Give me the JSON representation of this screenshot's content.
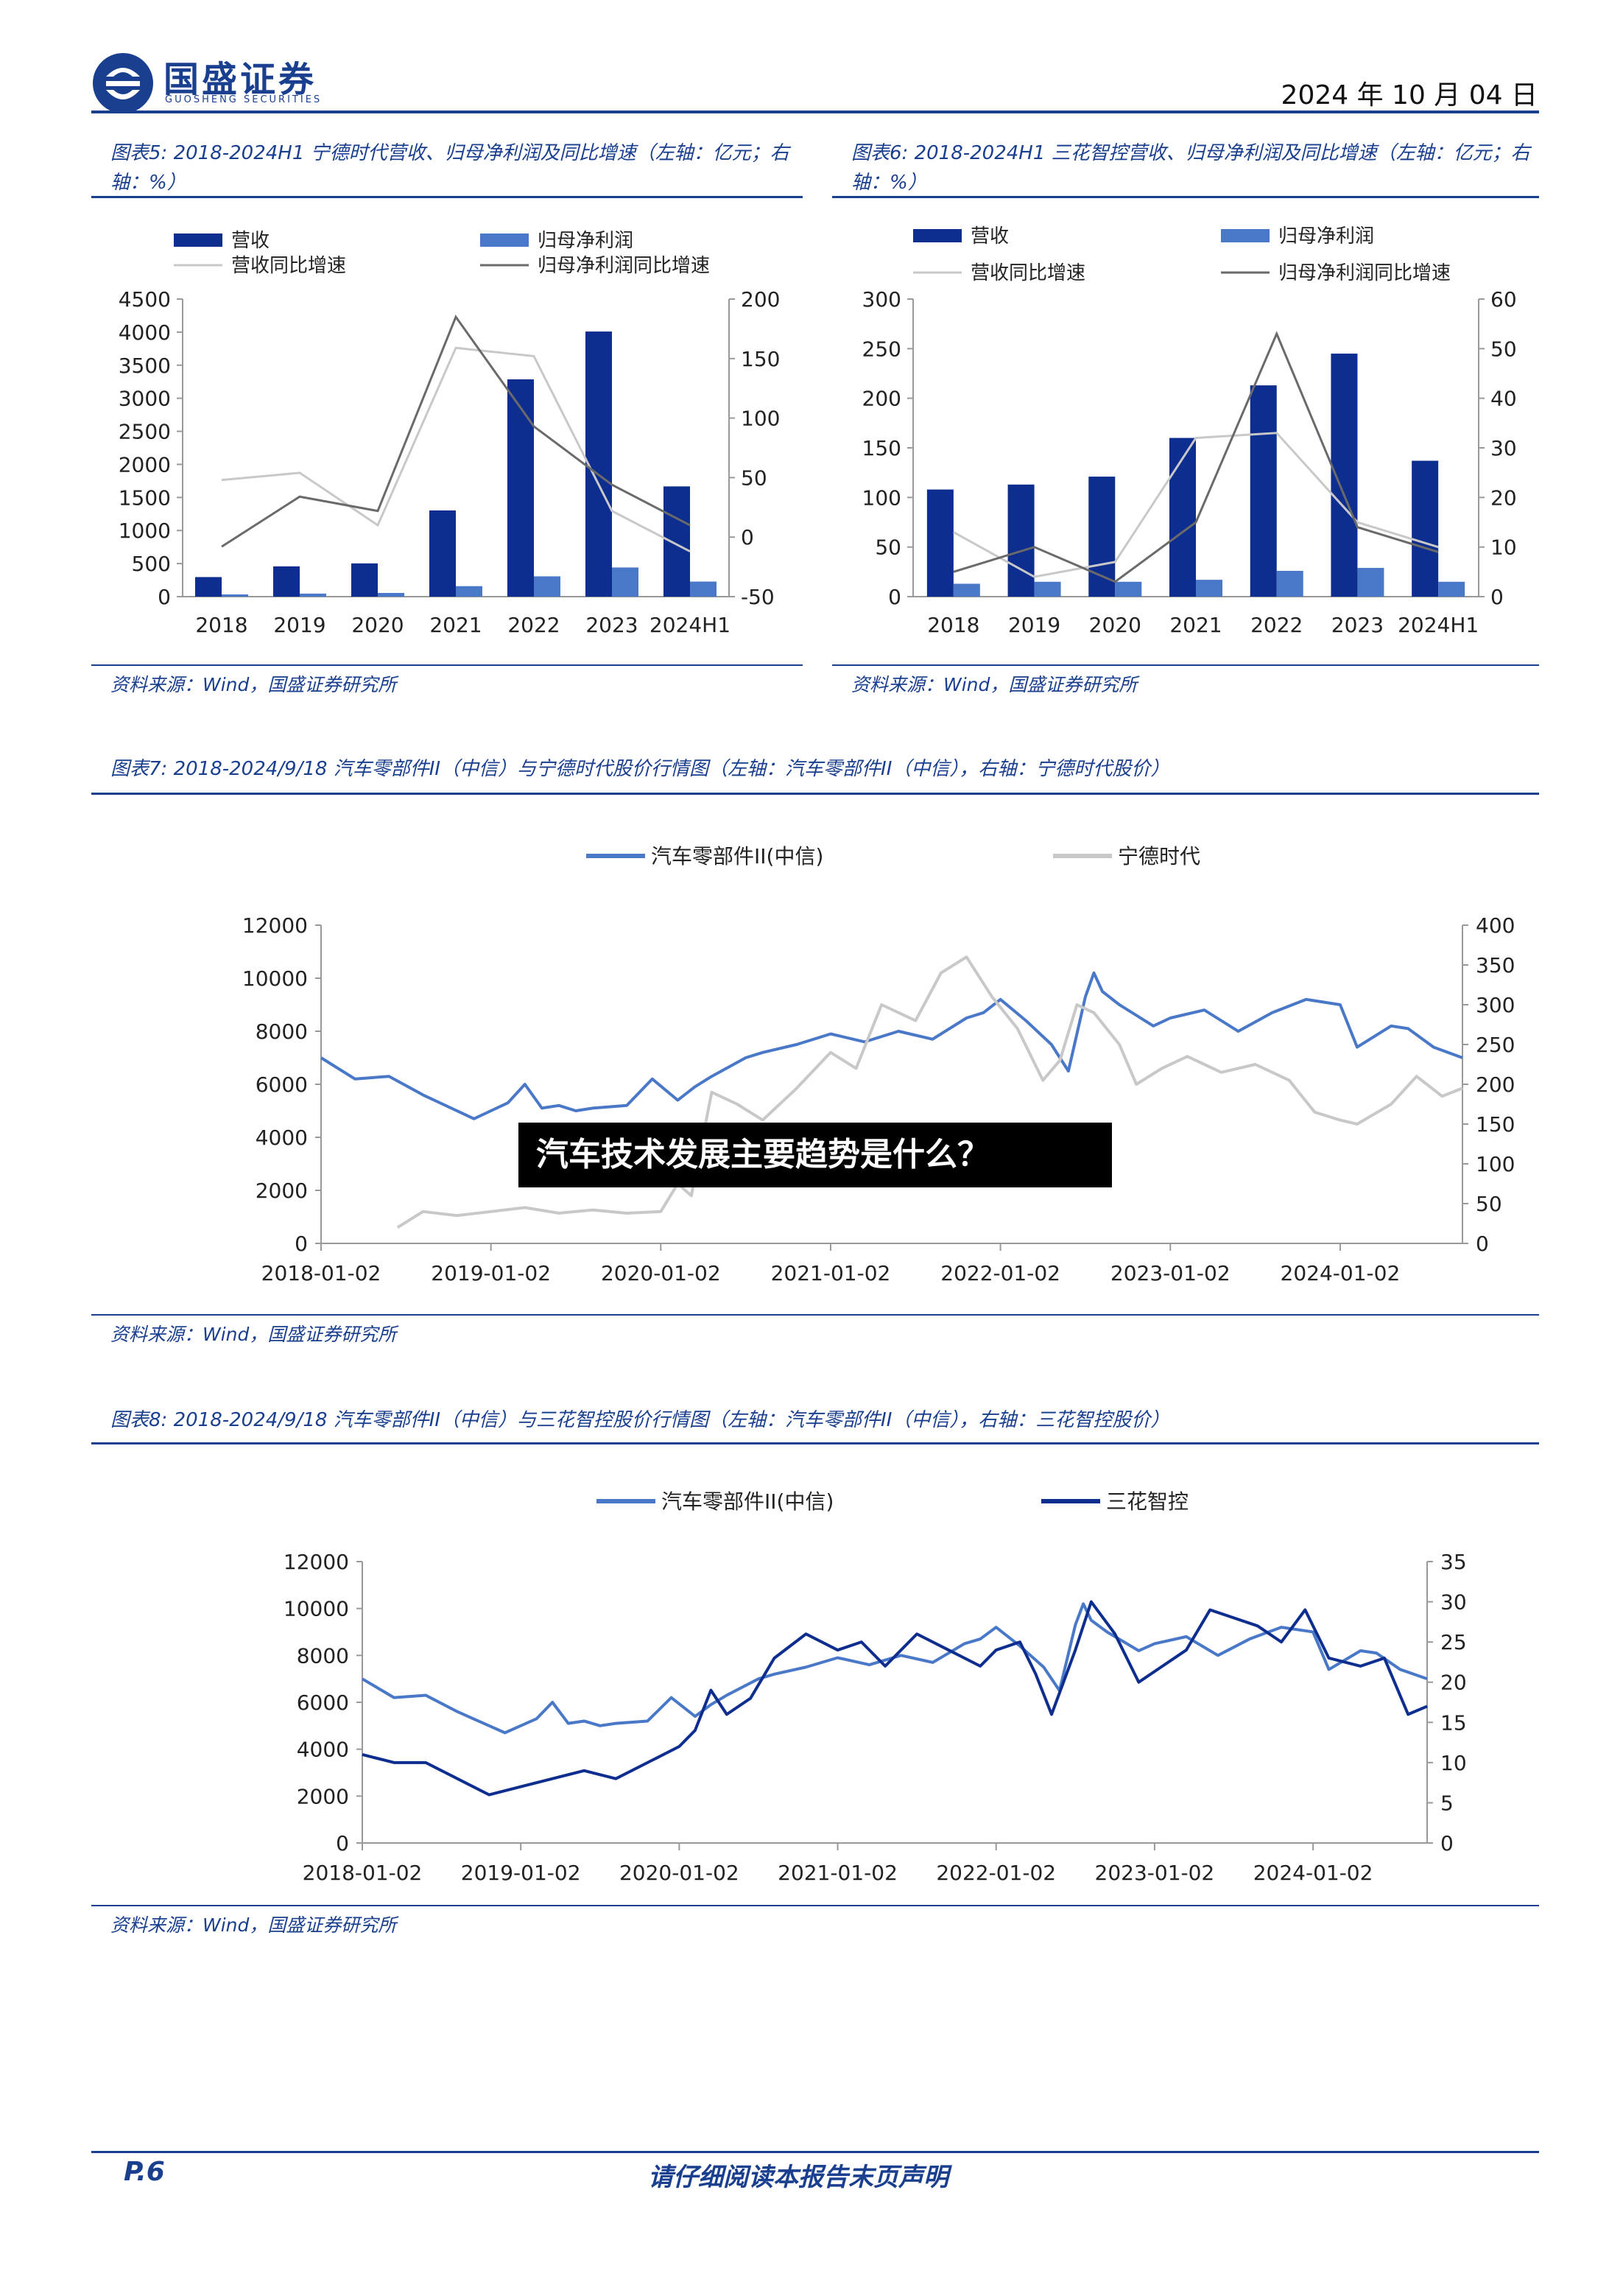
{
  "header": {
    "brand_cn": "国盛证券",
    "brand_en": "GUOSHENG SECURITIES",
    "date": "2024 年 10 月 04 日"
  },
  "colors": {
    "navy": "#0d2d8f",
    "mid_blue": "#4a78c8",
    "light_gray": "#c8c8c8",
    "dark_gray": "#6a6a6a",
    "brand": "#1a3f8f"
  },
  "fig5": {
    "title": "图表5:  2018-2024H1  宁德时代营收、归母净利润及同比增速（左轴：亿元；右轴：%）",
    "source": "资料来源：Wind，国盛证券研究所"
  },
  "fig6": {
    "title": "图表6:  2018-2024H1  三花智控营收、归母净利润及同比增速（左轴：亿元；右轴：%）",
    "source": "资料来源：Wind，国盛证券研究所"
  },
  "fig7": {
    "title": "图表7:  2018-2024/9/18 汽车零部件II（中信）与宁德时代股价行情图（左轴：汽车零部件II（中信），右轴：宁德时代股价）",
    "source": "资料来源：Wind，国盛证券研究所"
  },
  "fig8": {
    "title": "图表8:  2018-2024/9/18 汽车零部件II（中信）与三花智控股价行情图（左轴：汽车零部件II（中信），右轴：三花智控股价）",
    "source": "资料来源：Wind，国盛证券研究所"
  },
  "overlay": {
    "question": "汽车技术发展主要趋势是什么？"
  },
  "footer": {
    "page": "P.6",
    "note": "请仔细阅读本报告末页声明"
  },
  "chart_data": [
    {
      "id": "fig5",
      "type": "bar",
      "categories": [
        "2018",
        "2019",
        "2020",
        "2021",
        "2022",
        "2023",
        "2024H1"
      ],
      "series": [
        {
          "name": "营收",
          "kind": "bar",
          "axis": "left",
          "color": "#0d2d8f",
          "values": [
            296,
            458,
            503,
            1304,
            3286,
            4009,
            1667
          ]
        },
        {
          "name": "归母净利润",
          "kind": "bar",
          "axis": "left",
          "color": "#4a78c8",
          "values": [
            34,
            46,
            56,
            159,
            307,
            441,
            228
          ]
        },
        {
          "name": "营收同比增速",
          "kind": "line",
          "axis": "right",
          "color": "#c8c8c8",
          "values": [
            48,
            54,
            10,
            159,
            152,
            22,
            -12
          ]
        },
        {
          "name": "归母净利润同比增速",
          "kind": "line",
          "axis": "right",
          "color": "#6a6a6a",
          "values": [
            -8,
            34,
            22,
            185,
            93,
            44,
            10
          ]
        }
      ],
      "ylim": [
        0,
        4500
      ],
      "yticks": [
        0,
        500,
        1000,
        1500,
        2000,
        2500,
        3000,
        3500,
        4000,
        4500
      ],
      "y2lim": [
        -50,
        200
      ],
      "y2ticks": [
        -50,
        0,
        50,
        100,
        150,
        200
      ],
      "legend_position": "top"
    },
    {
      "id": "fig6",
      "type": "bar",
      "categories": [
        "2018",
        "2019",
        "2020",
        "2021",
        "2022",
        "2023",
        "2024H1"
      ],
      "series": [
        {
          "name": "营收",
          "kind": "bar",
          "axis": "left",
          "color": "#0d2d8f",
          "values": [
            108,
            113,
            121,
            160,
            213,
            245,
            137
          ]
        },
        {
          "name": "归母净利润",
          "kind": "bar",
          "axis": "left",
          "color": "#4a78c8",
          "values": [
            13,
            15,
            15,
            17,
            26,
            29,
            15
          ]
        },
        {
          "name": "营收同比增速",
          "kind": "line",
          "axis": "right",
          "color": "#c8c8c8",
          "values": [
            13,
            4,
            7,
            32,
            33,
            15,
            10
          ]
        },
        {
          "name": "归母净利润同比增速",
          "kind": "line",
          "axis": "right",
          "color": "#6a6a6a",
          "values": [
            5,
            10,
            3,
            15,
            53,
            14,
            9
          ]
        }
      ],
      "ylim": [
        0,
        300
      ],
      "yticks": [
        0,
        50,
        100,
        150,
        200,
        250,
        300
      ],
      "y2lim": [
        0,
        60
      ],
      "y2ticks": [
        0,
        10,
        20,
        30,
        40,
        50,
        60
      ],
      "legend_position": "top"
    },
    {
      "id": "fig7",
      "type": "line",
      "x_labels": [
        "2018-01-02",
        "2019-01-02",
        "2020-01-02",
        "2021-01-02",
        "2022-01-02",
        "2023-01-02",
        "2024-01-02"
      ],
      "x_range": [
        2018.0,
        2024.72
      ],
      "series": [
        {
          "name": "汽车零部件II(中信)",
          "axis": "left",
          "color": "#4a78c8",
          "x": [
            2018.0,
            2018.2,
            2018.4,
            2018.6,
            2018.8,
            2018.9,
            2019.0,
            2019.1,
            2019.2,
            2019.3,
            2019.4,
            2019.5,
            2019.6,
            2019.8,
            2019.95,
            2020.1,
            2020.2,
            2020.3,
            2020.5,
            2020.6,
            2020.8,
            2021.0,
            2021.2,
            2021.4,
            2021.6,
            2021.8,
            2021.9,
            2022.0,
            2022.15,
            2022.3,
            2022.4,
            2022.5,
            2022.55,
            2022.6,
            2022.7,
            2022.9,
            2023.0,
            2023.2,
            2023.4,
            2023.6,
            2023.8,
            2024.0,
            2024.1,
            2024.3,
            2024.4,
            2024.55,
            2024.72
          ],
          "values": [
            7000,
            6200,
            6300,
            5600,
            5000,
            4700,
            5000,
            5300,
            6000,
            5100,
            5200,
            5000,
            5100,
            5200,
            6200,
            5400,
            5900,
            6300,
            7000,
            7200,
            7500,
            7900,
            7600,
            8000,
            7700,
            8500,
            8700,
            9200,
            8400,
            7500,
            6500,
            9300,
            10200,
            9500,
            9000,
            8200,
            8500,
            8800,
            8000,
            8700,
            9200,
            9000,
            7400,
            8200,
            8100,
            7400,
            7000
          ]
        },
        {
          "name": "宁德时代",
          "axis": "right",
          "color": "#c8c8c8",
          "x": [
            2018.45,
            2018.6,
            2018.8,
            2019.0,
            2019.2,
            2019.4,
            2019.6,
            2019.8,
            2020.0,
            2020.1,
            2020.18,
            2020.3,
            2020.45,
            2020.6,
            2020.8,
            2021.0,
            2021.15,
            2021.3,
            2021.5,
            2021.65,
            2021.8,
            2021.95,
            2022.1,
            2022.25,
            2022.35,
            2022.45,
            2022.55,
            2022.7,
            2022.8,
            2022.95,
            2023.1,
            2023.3,
            2023.5,
            2023.7,
            2023.85,
            2024.0,
            2024.1,
            2024.3,
            2024.45,
            2024.6,
            2024.72
          ],
          "values": [
            20,
            40,
            35,
            40,
            45,
            38,
            42,
            38,
            40,
            75,
            60,
            190,
            175,
            155,
            195,
            240,
            220,
            300,
            280,
            340,
            360,
            310,
            270,
            205,
            230,
            300,
            290,
            250,
            200,
            220,
            235,
            215,
            225,
            205,
            165,
            155,
            150,
            175,
            210,
            185,
            195
          ]
        }
      ],
      "ylim": [
        0,
        12000
      ],
      "yticks": [
        0,
        2000,
        4000,
        6000,
        8000,
        10000,
        12000
      ],
      "y2lim": [
        0,
        400
      ],
      "y2ticks": [
        0,
        50,
        100,
        150,
        200,
        250,
        300,
        350,
        400
      ],
      "legend_position": "top"
    },
    {
      "id": "fig8",
      "type": "line",
      "x_labels": [
        "2018-01-02",
        "2019-01-02",
        "2020-01-02",
        "2021-01-02",
        "2022-01-02",
        "2023-01-02",
        "2024-01-02"
      ],
      "x_range": [
        2018.0,
        2024.72
      ],
      "series": [
        {
          "name": "汽车零部件II(中信)",
          "axis": "left",
          "color": "#4a78c8",
          "x": [
            2018.0,
            2018.2,
            2018.4,
            2018.6,
            2018.8,
            2018.9,
            2019.0,
            2019.1,
            2019.2,
            2019.3,
            2019.4,
            2019.5,
            2019.6,
            2019.8,
            2019.95,
            2020.1,
            2020.2,
            2020.3,
            2020.5,
            2020.6,
            2020.8,
            2021.0,
            2021.2,
            2021.4,
            2021.6,
            2021.8,
            2021.9,
            2022.0,
            2022.15,
            2022.3,
            2022.4,
            2022.5,
            2022.55,
            2022.6,
            2022.7,
            2022.9,
            2023.0,
            2023.2,
            2023.4,
            2023.6,
            2023.8,
            2024.0,
            2024.1,
            2024.3,
            2024.4,
            2024.55,
            2024.72
          ],
          "values": [
            7000,
            6200,
            6300,
            5600,
            5000,
            4700,
            5000,
            5300,
            6000,
            5100,
            5200,
            5000,
            5100,
            5200,
            6200,
            5400,
            5900,
            6300,
            7000,
            7200,
            7500,
            7900,
            7600,
            8000,
            7700,
            8500,
            8700,
            9200,
            8400,
            7500,
            6500,
            9300,
            10200,
            9500,
            9000,
            8200,
            8500,
            8800,
            8000,
            8700,
            9200,
            9000,
            7400,
            8200,
            8100,
            7400,
            7000
          ]
        },
        {
          "name": "三花智控",
          "axis": "right",
          "color": "#0d2d8f",
          "x": [
            2018.0,
            2018.2,
            2018.4,
            2018.6,
            2018.8,
            2019.0,
            2019.2,
            2019.4,
            2019.6,
            2019.8,
            2020.0,
            2020.1,
            2020.2,
            2020.3,
            2020.45,
            2020.6,
            2020.8,
            2021.0,
            2021.15,
            2021.3,
            2021.5,
            2021.7,
            2021.9,
            2022.0,
            2022.15,
            2022.25,
            2022.35,
            2022.5,
            2022.6,
            2022.75,
            2022.9,
            2023.05,
            2023.2,
            2023.35,
            2023.5,
            2023.65,
            2023.8,
            2023.95,
            2024.1,
            2024.3,
            2024.45,
            2024.6,
            2024.72
          ],
          "values": [
            11,
            10,
            10,
            8,
            6,
            7,
            8,
            9,
            8,
            10,
            12,
            14,
            19,
            16,
            18,
            23,
            26,
            24,
            25,
            22,
            26,
            24,
            22,
            24,
            25,
            21,
            16,
            24,
            30,
            26,
            20,
            22,
            24,
            29,
            28,
            27,
            25,
            29,
            23,
            22,
            23,
            16,
            17
          ]
        }
      ],
      "ylim": [
        0,
        12000
      ],
      "yticks": [
        0,
        2000,
        4000,
        6000,
        8000,
        10000,
        12000
      ],
      "y2lim": [
        0,
        35
      ],
      "y2ticks": [
        0,
        5,
        10,
        15,
        20,
        25,
        30,
        35
      ],
      "legend_position": "top"
    }
  ]
}
